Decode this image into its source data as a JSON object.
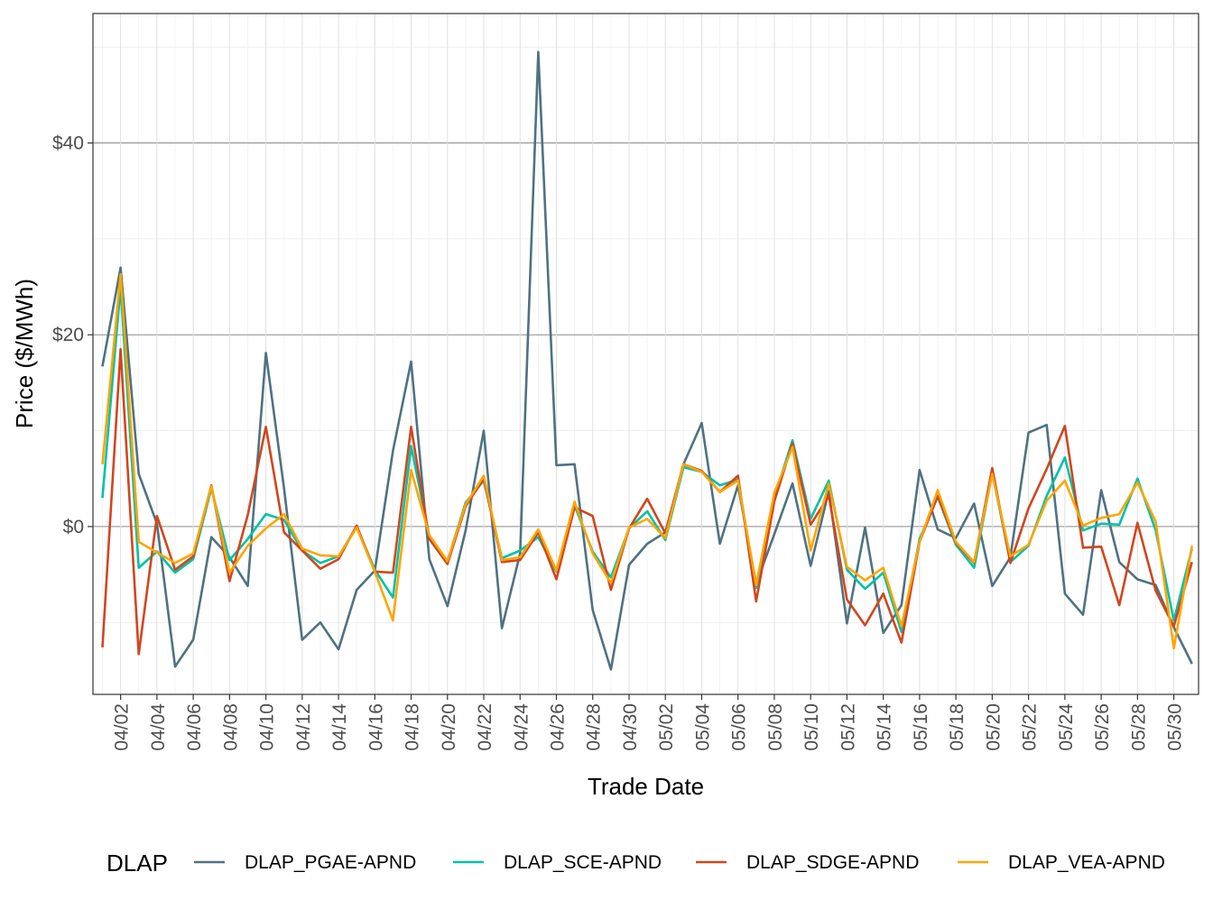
{
  "chart_data": {
    "type": "line",
    "xlabel": "Trade Date",
    "ylabel": "Price ($/MWh)",
    "ylim": [
      -17.5,
      53.5
    ],
    "y_ticks": [
      0,
      20,
      40
    ],
    "y_tick_labels": [
      "$0",
      "$20",
      "$40"
    ],
    "x": [
      "04/01",
      "04/02",
      "04/03",
      "04/04",
      "04/05",
      "04/06",
      "04/07",
      "04/08",
      "04/09",
      "04/10",
      "04/11",
      "04/12",
      "04/13",
      "04/14",
      "04/15",
      "04/16",
      "04/17",
      "04/18",
      "04/19",
      "04/20",
      "04/21",
      "04/22",
      "04/23",
      "04/24",
      "04/25",
      "04/26",
      "04/27",
      "04/28",
      "04/29",
      "04/30",
      "05/01",
      "05/02",
      "05/03",
      "05/04",
      "05/05",
      "05/06",
      "05/07",
      "05/08",
      "05/09",
      "05/10",
      "05/11",
      "05/12",
      "05/13",
      "05/14",
      "05/15",
      "05/16",
      "05/17",
      "05/18",
      "05/19",
      "05/20",
      "05/21",
      "05/22",
      "05/23",
      "05/24",
      "05/25",
      "05/26",
      "05/27",
      "05/28",
      "05/29",
      "05/30",
      "05/31"
    ],
    "x_tick_labels": [
      "04/02",
      "04/04",
      "04/06",
      "04/08",
      "04/10",
      "04/12",
      "04/14",
      "04/16",
      "04/18",
      "04/20",
      "04/22",
      "04/24",
      "04/26",
      "04/28",
      "04/30",
      "05/02",
      "05/04",
      "05/06",
      "05/08",
      "05/10",
      "05/12",
      "05/14",
      "05/16",
      "05/18",
      "05/20",
      "05/22",
      "05/24",
      "05/26",
      "05/28",
      "05/30"
    ],
    "grid": true,
    "legend": {
      "title": "DLAP",
      "position": "bottom"
    },
    "series": [
      {
        "name": "DLAP_PGAE-APND",
        "color": "#4E7282",
        "values": [
          16.7,
          27.0,
          5.5,
          0.3,
          -14.6,
          -11.8,
          -1.1,
          -3.2,
          -6.2,
          18.1,
          4.0,
          -11.8,
          -10.0,
          -12.8,
          -6.6,
          -4.6,
          7.9,
          17.2,
          -3.4,
          -8.3,
          -0.4,
          10.0,
          -10.6,
          -2.8,
          49.5,
          6.4,
          6.5,
          -8.7,
          -14.9,
          -4.0,
          -1.8,
          -0.6,
          6.5,
          10.8,
          -1.8,
          4.3,
          -6.0,
          -0.8,
          4.5,
          -4.1,
          3.7,
          -10.1,
          -0.1,
          -11.1,
          -8.2,
          5.9,
          -0.3,
          -1.2,
          2.4,
          -6.2,
          -3.2,
          9.8,
          10.6,
          -7.0,
          -9.2,
          3.8,
          -3.7,
          -5.5,
          -6.1,
          -10.5,
          -14.3
        ]
      },
      {
        "name": "DLAP_SCE-APND",
        "color": "#00C1A8",
        "values": [
          3.0,
          25.0,
          -4.3,
          -2.6,
          -4.8,
          -3.4,
          4.0,
          -3.5,
          -1.3,
          1.3,
          0.7,
          -2.5,
          -3.8,
          -3.1,
          0.0,
          -4.5,
          -7.4,
          8.4,
          -1.0,
          -3.6,
          2.5,
          4.8,
          -3.3,
          -2.5,
          -1.1,
          -4.7,
          2.2,
          -2.6,
          -5.3,
          -0.2,
          1.6,
          -1.4,
          6.2,
          5.7,
          4.3,
          4.9,
          -6.4,
          3.0,
          9.0,
          0.8,
          4.8,
          -4.5,
          -6.5,
          -4.8,
          -11.0,
          -1.3,
          3.1,
          -1.9,
          -4.3,
          5.6,
          -3.7,
          -2.0,
          3.2,
          7.2,
          -0.4,
          0.3,
          0.2,
          5.0,
          -0.4,
          -9.8,
          -2.3
        ]
      },
      {
        "name": "DLAP_SDGE-APND",
        "color": "#D1461E",
        "values": [
          -12.6,
          18.5,
          -13.3,
          1.1,
          -4.5,
          -3.1,
          4.3,
          -5.7,
          1.2,
          10.4,
          -0.6,
          -2.5,
          -4.4,
          -3.4,
          0.1,
          -4.7,
          -4.8,
          10.4,
          -1.3,
          -3.9,
          2.1,
          5.0,
          -3.7,
          -3.5,
          -0.6,
          -5.5,
          2.0,
          1.1,
          -6.6,
          -0.2,
          2.9,
          -0.7,
          6.5,
          5.8,
          3.6,
          5.3,
          -7.8,
          2.6,
          8.7,
          0.2,
          3.2,
          -7.6,
          -10.3,
          -7.0,
          -12.1,
          -1.6,
          3.2,
          -1.7,
          -3.8,
          6.1,
          -3.8,
          1.9,
          6.0,
          10.5,
          -2.2,
          -2.1,
          -8.2,
          0.4,
          -6.7,
          -10.4,
          -3.7
        ]
      },
      {
        "name": "DLAP_VEA-APND",
        "color": "#FFA500",
        "values": [
          6.5,
          26.3,
          -1.6,
          -2.7,
          -3.8,
          -2.8,
          4.2,
          -4.8,
          -2.0,
          -0.2,
          1.3,
          -2.3,
          -3.0,
          -3.1,
          -0.1,
          -4.7,
          -9.8,
          5.9,
          -0.9,
          -3.6,
          2.3,
          5.3,
          -3.5,
          -3.2,
          -0.3,
          -4.6,
          2.6,
          -2.8,
          -5.9,
          -0.1,
          0.8,
          -1.2,
          6.5,
          5.7,
          3.6,
          4.8,
          -6.1,
          3.5,
          8.3,
          -2.5,
          4.5,
          -4.2,
          -5.6,
          -4.3,
          -10.4,
          -1.6,
          3.8,
          -1.6,
          -3.7,
          5.5,
          -3.1,
          -1.9,
          2.7,
          4.8,
          0.1,
          0.9,
          1.3,
          4.6,
          0.5,
          -12.7,
          -2.0
        ]
      }
    ]
  }
}
